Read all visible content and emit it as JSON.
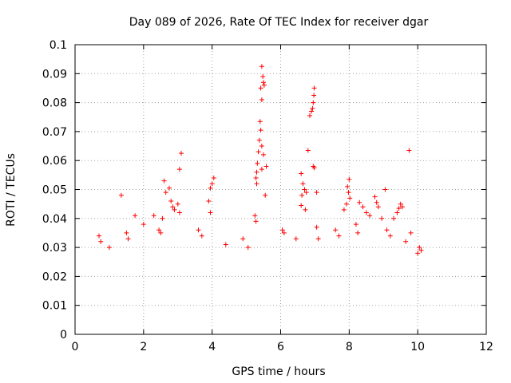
{
  "chart_data": {
    "type": "scatter",
    "title": "Day 089 of 2026, Rate Of TEC Index for receiver dgar",
    "xlabel": "GPS time / hours",
    "ylabel": "ROTI / TECUs",
    "xlim": [
      0,
      12
    ],
    "ylim": [
      0,
      0.1
    ],
    "x_ticks": [
      "0",
      "2",
      "4",
      "6",
      "8",
      "10",
      "12"
    ],
    "y_ticks": [
      "0",
      "0.01",
      "0.02",
      "0.03",
      "0.04",
      "0.05",
      "0.06",
      "0.07",
      "0.08",
      "0.09",
      "0.1"
    ],
    "grid": true,
    "marker": "+",
    "color": "#ff0000",
    "series": [
      {
        "points": [
          [
            1.35,
            0.048
          ],
          [
            3.1,
            0.0625
          ],
          [
            3.05,
            0.057
          ],
          [
            2.6,
            0.053
          ],
          [
            2.65,
            0.049
          ],
          [
            2.75,
            0.0505
          ],
          [
            2.8,
            0.046
          ],
          [
            2.85,
            0.044
          ],
          [
            2.9,
            0.043
          ],
          [
            3.0,
            0.045
          ],
          [
            3.05,
            0.042
          ],
          [
            2.55,
            0.04
          ],
          [
            2.3,
            0.041
          ],
          [
            2.0,
            0.038
          ],
          [
            1.75,
            0.041
          ],
          [
            3.95,
            0.0505
          ],
          [
            4.0,
            0.052
          ],
          [
            4.05,
            0.054
          ],
          [
            3.9,
            0.046
          ],
          [
            3.95,
            0.042
          ],
          [
            5.45,
            0.0925
          ],
          [
            5.48,
            0.089
          ],
          [
            5.5,
            0.087
          ],
          [
            5.52,
            0.086
          ],
          [
            5.42,
            0.085
          ],
          [
            5.45,
            0.081
          ],
          [
            5.4,
            0.0735
          ],
          [
            5.42,
            0.0705
          ],
          [
            5.38,
            0.067
          ],
          [
            5.45,
            0.065
          ],
          [
            5.5,
            0.062
          ],
          [
            5.35,
            0.063
          ],
          [
            5.32,
            0.059
          ],
          [
            5.3,
            0.056
          ],
          [
            5.28,
            0.054
          ],
          [
            5.3,
            0.052
          ],
          [
            5.45,
            0.057
          ],
          [
            5.58,
            0.058
          ],
          [
            5.25,
            0.041
          ],
          [
            5.28,
            0.039
          ],
          [
            5.55,
            0.048
          ],
          [
            6.05,
            0.036
          ],
          [
            6.1,
            0.035
          ],
          [
            6.98,
            0.085
          ],
          [
            6.97,
            0.0825
          ],
          [
            6.95,
            0.08
          ],
          [
            6.93,
            0.078
          ],
          [
            6.9,
            0.077
          ],
          [
            6.85,
            0.0755
          ],
          [
            6.8,
            0.0635
          ],
          [
            6.95,
            0.058
          ],
          [
            6.98,
            0.0575
          ],
          [
            6.6,
            0.0555
          ],
          [
            6.65,
            0.052
          ],
          [
            6.7,
            0.05
          ],
          [
            6.75,
            0.049
          ],
          [
            6.62,
            0.048
          ],
          [
            7.05,
            0.049
          ],
          [
            6.6,
            0.0445
          ],
          [
            6.72,
            0.043
          ],
          [
            7.05,
            0.037
          ],
          [
            7.1,
            0.033
          ],
          [
            7.85,
            0.043
          ],
          [
            8.0,
            0.0535
          ],
          [
            7.95,
            0.051
          ],
          [
            7.98,
            0.049
          ],
          [
            8.02,
            0.047
          ],
          [
            7.92,
            0.045
          ],
          [
            8.3,
            0.0455
          ],
          [
            8.4,
            0.044
          ],
          [
            8.5,
            0.042
          ],
          [
            8.6,
            0.041
          ],
          [
            8.75,
            0.0475
          ],
          [
            8.8,
            0.0455
          ],
          [
            8.85,
            0.044
          ],
          [
            8.95,
            0.04
          ],
          [
            9.05,
            0.05
          ],
          [
            9.3,
            0.04
          ],
          [
            9.45,
            0.0435
          ],
          [
            9.5,
            0.045
          ],
          [
            9.55,
            0.044
          ],
          [
            9.4,
            0.042
          ],
          [
            9.75,
            0.0635
          ],
          [
            9.65,
            0.032
          ],
          [
            10.0,
            0.028
          ],
          [
            10.05,
            0.03
          ],
          [
            10.1,
            0.029
          ],
          [
            0.7,
            0.034
          ],
          [
            0.75,
            0.032
          ],
          [
            1.0,
            0.03
          ],
          [
            1.5,
            0.035
          ],
          [
            1.55,
            0.033
          ],
          [
            2.45,
            0.036
          ],
          [
            2.5,
            0.035
          ],
          [
            3.6,
            0.036
          ],
          [
            3.7,
            0.034
          ],
          [
            4.4,
            0.031
          ],
          [
            4.9,
            0.033
          ],
          [
            5.05,
            0.03
          ],
          [
            6.45,
            0.033
          ],
          [
            7.6,
            0.036
          ],
          [
            7.7,
            0.034
          ],
          [
            8.2,
            0.038
          ],
          [
            8.25,
            0.035
          ],
          [
            9.1,
            0.036
          ],
          [
            9.2,
            0.034
          ],
          [
            9.8,
            0.035
          ]
        ]
      }
    ]
  }
}
